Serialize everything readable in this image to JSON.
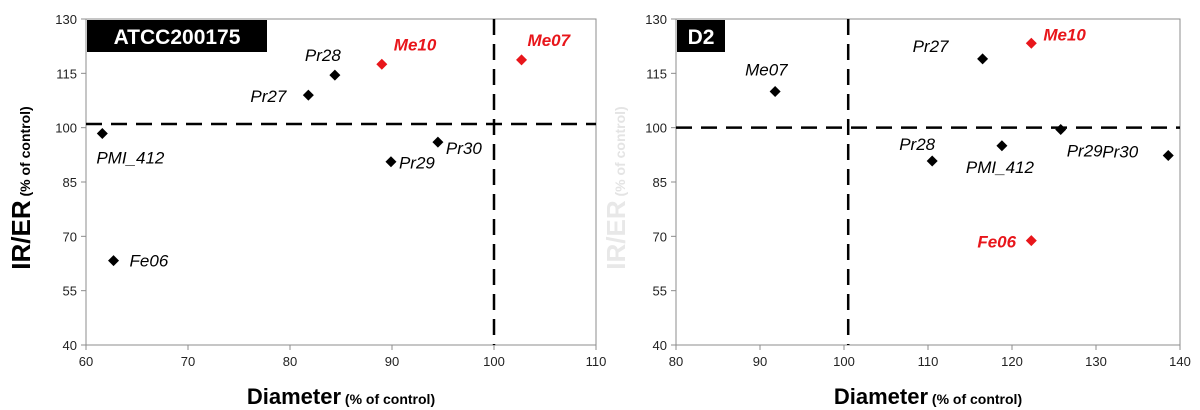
{
  "chart_data": [
    {
      "type": "scatter",
      "title": "ATCC200175",
      "xlabel": "Diameter",
      "xlabel_unit": "(% of control)",
      "ylabel": "IR/ER",
      "ylabel_unit": "(% of control)",
      "xlim": [
        60,
        110
      ],
      "ylim": [
        40,
        130
      ],
      "xticks": [
        "60",
        "70",
        "80",
        "90",
        "100",
        "110"
      ],
      "yticks": [
        "40",
        "55",
        "70",
        "85",
        "100",
        "115",
        "130"
      ],
      "reference_lines": {
        "x": 100,
        "y": 101
      },
      "grid": false,
      "highlight_color": "#e8161b",
      "default_color": "#000000",
      "points": [
        {
          "label": "Me10",
          "x": 89,
          "y": 117.5,
          "highlight": true
        },
        {
          "label": "Me07",
          "x": 102.7,
          "y": 118.7,
          "highlight": true
        },
        {
          "label": "Pr28",
          "x": 84.4,
          "y": 114.5,
          "highlight": false
        },
        {
          "label": "Pr27",
          "x": 81.8,
          "y": 109,
          "highlight": false
        },
        {
          "label": "PMI_412",
          "x": 61.6,
          "y": 98.4,
          "highlight": false
        },
        {
          "label": "Pr30",
          "x": 94.5,
          "y": 96,
          "highlight": false
        },
        {
          "label": "Pr29",
          "x": 89.9,
          "y": 90.6,
          "highlight": false
        },
        {
          "label": "Fe06",
          "x": 62.7,
          "y": 63.3,
          "highlight": false
        }
      ]
    },
    {
      "type": "scatter",
      "title": "D2",
      "xlabel": "Diameter",
      "xlabel_unit": "(% of control)",
      "ylabel": "IR/ER",
      "ylabel_unit": "(% of control)",
      "xlim": [
        80,
        140
      ],
      "ylim": [
        40,
        130
      ],
      "xticks": [
        "80",
        "90",
        "100",
        "110",
        "120",
        "130",
        "140"
      ],
      "yticks": [
        "40",
        "55",
        "70",
        "85",
        "100",
        "115",
        "130"
      ],
      "reference_lines": {
        "x": 100.5,
        "y": 100
      },
      "grid": false,
      "highlight_color": "#e8161b",
      "default_color": "#000000",
      "points": [
        {
          "label": "Me10",
          "x": 122.3,
          "y": 123.3,
          "highlight": true
        },
        {
          "label": "Pr27",
          "x": 116.5,
          "y": 119,
          "highlight": false
        },
        {
          "label": "Me07",
          "x": 91.8,
          "y": 110,
          "highlight": false
        },
        {
          "label": "Pr29",
          "x": 125.8,
          "y": 99.5,
          "highlight": false
        },
        {
          "label": "Pr30",
          "x": 138.6,
          "y": 92.3,
          "highlight": false
        },
        {
          "label": "PMI_412",
          "x": 118.8,
          "y": 95,
          "highlight": false
        },
        {
          "label": "Pr28",
          "x": 110.5,
          "y": 90.8,
          "highlight": false
        },
        {
          "label": "Fe06",
          "x": 122.3,
          "y": 68.8,
          "highlight": true
        }
      ]
    }
  ]
}
